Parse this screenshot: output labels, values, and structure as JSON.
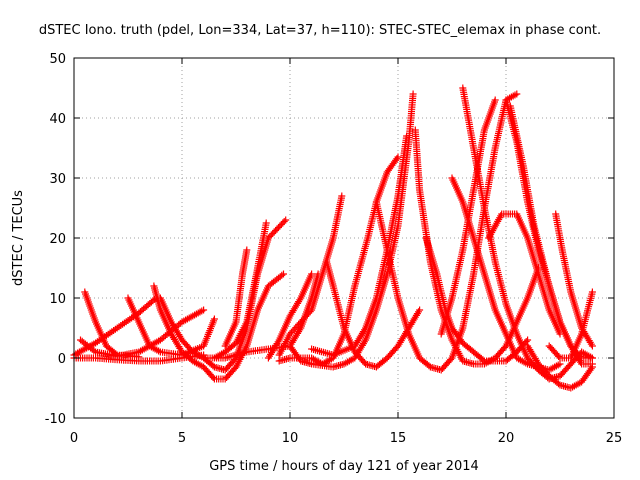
{
  "chart_data": {
    "type": "scatter",
    "title": "dSTEC Iono. truth (pdel, Lon=334, Lat=37, h=110): STEC-STEC_elemax in phase cont.",
    "xlabel": "GPS time / hours of day 121 of year 2014",
    "ylabel": "dSTEC  / TECUs",
    "xlim": [
      0,
      25
    ],
    "ylim": [
      -10,
      50
    ],
    "xticks": [
      "0",
      "5",
      "10",
      "15",
      "20",
      "25"
    ],
    "yticks": [
      "-10",
      "0",
      "10",
      "20",
      "30",
      "40",
      "50"
    ],
    "grid": true,
    "legend": "none",
    "marker": "plus",
    "color": "#ff0000",
    "series": [
      {
        "points": [
          [
            0,
            0.5
          ],
          [
            1,
            2.5
          ],
          [
            2,
            5
          ],
          [
            3,
            7.5
          ],
          [
            3.8,
            10
          ]
        ]
      },
      {
        "points": [
          [
            0.3,
            3
          ],
          [
            1,
            1
          ],
          [
            2,
            0.3
          ],
          [
            3,
            1
          ],
          [
            4,
            3
          ],
          [
            5,
            6
          ],
          [
            6,
            8
          ]
        ]
      },
      {
        "points": [
          [
            0.5,
            11
          ],
          [
            1,
            6
          ],
          [
            1.5,
            2
          ],
          [
            2,
            0.5
          ],
          [
            3,
            0.2
          ]
        ]
      },
      {
        "points": [
          [
            0,
            0
          ],
          [
            1,
            0
          ],
          [
            2,
            -0.3
          ],
          [
            3,
            -0.5
          ],
          [
            4,
            -0.5
          ],
          [
            5,
            0
          ],
          [
            6,
            0.5
          ]
        ]
      },
      {
        "points": [
          [
            2.5,
            10
          ],
          [
            3,
            6
          ],
          [
            3.5,
            2
          ],
          [
            4,
            1
          ],
          [
            5,
            0.5
          ],
          [
            6,
            2
          ],
          [
            6.5,
            6.5
          ]
        ]
      },
      {
        "points": [
          [
            3.7,
            12
          ],
          [
            4,
            8
          ],
          [
            4.5,
            4
          ],
          [
            5,
            1
          ],
          [
            5.5,
            -0.5
          ],
          [
            6,
            -1.5
          ],
          [
            6.5,
            -3.5
          ],
          [
            7,
            -3.5
          ],
          [
            7.5,
            -1.5
          ],
          [
            8,
            2
          ],
          [
            8.5,
            8
          ],
          [
            9,
            12
          ],
          [
            9.7,
            14
          ]
        ]
      },
      {
        "points": [
          [
            4,
            10
          ],
          [
            4.5,
            6
          ],
          [
            5,
            3
          ],
          [
            5.5,
            1
          ],
          [
            6,
            0
          ],
          [
            6.5,
            -1.5
          ],
          [
            7,
            -2
          ],
          [
            7.5,
            0
          ],
          [
            8,
            5
          ],
          [
            8.5,
            14
          ],
          [
            9,
            20
          ],
          [
            9.8,
            23
          ]
        ]
      },
      {
        "points": [
          [
            6.5,
            0
          ],
          [
            7,
            1
          ],
          [
            7.5,
            2.5
          ],
          [
            8,
            6
          ],
          [
            8.5,
            15
          ],
          [
            8.9,
            22.5
          ]
        ]
      },
      {
        "points": [
          [
            7,
            2
          ],
          [
            7.5,
            6
          ],
          [
            7.8,
            14
          ],
          [
            8,
            18
          ]
        ]
      },
      {
        "points": [
          [
            6,
            0
          ],
          [
            7,
            0
          ],
          [
            8,
            1
          ],
          [
            9,
            1.5
          ],
          [
            10,
            2
          ],
          [
            10.5,
            5
          ],
          [
            11,
            10
          ],
          [
            11.3,
            14
          ]
        ]
      },
      {
        "points": [
          [
            9,
            0
          ],
          [
            9.5,
            3
          ],
          [
            10,
            7
          ],
          [
            10.5,
            10
          ],
          [
            11,
            14
          ]
        ]
      },
      {
        "points": [
          [
            9.5,
            0.5
          ],
          [
            10,
            4
          ],
          [
            11,
            8
          ],
          [
            11.5,
            14
          ],
          [
            12,
            20
          ],
          [
            12.4,
            27
          ]
        ]
      },
      {
        "points": [
          [
            9.5,
            -0.5
          ],
          [
            10,
            0
          ],
          [
            11,
            0
          ],
          [
            11.5,
            -1
          ],
          [
            12,
            0
          ],
          [
            12.5,
            4
          ],
          [
            13,
            12
          ],
          [
            13.6,
            20
          ],
          [
            14,
            26
          ],
          [
            14.5,
            31
          ],
          [
            15,
            33.5
          ]
        ]
      },
      {
        "points": [
          [
            10,
            2
          ],
          [
            10.5,
            -0.5
          ],
          [
            11,
            -1
          ],
          [
            12,
            -1.5
          ],
          [
            12.5,
            -1
          ],
          [
            13,
            0
          ],
          [
            13.5,
            3
          ],
          [
            14,
            8
          ],
          [
            14.5,
            14
          ],
          [
            15,
            22
          ],
          [
            15.5,
            36
          ],
          [
            15.7,
            44
          ]
        ]
      },
      {
        "points": [
          [
            11,
            1.5
          ],
          [
            12,
            0.5
          ],
          [
            13,
            2
          ],
          [
            13.5,
            5
          ],
          [
            14,
            10
          ],
          [
            14.5,
            18
          ],
          [
            15,
            27
          ],
          [
            15.4,
            37
          ]
        ]
      },
      {
        "points": [
          [
            11.7,
            16
          ],
          [
            12,
            12
          ],
          [
            12.5,
            5
          ],
          [
            13,
            1
          ],
          [
            13.5,
            -1
          ],
          [
            14,
            -1.5
          ],
          [
            14.5,
            0
          ],
          [
            15,
            2
          ],
          [
            15.5,
            5
          ],
          [
            16,
            8
          ]
        ]
      },
      {
        "points": [
          [
            14,
            26
          ],
          [
            14.5,
            18
          ],
          [
            15,
            10
          ],
          [
            15.5,
            4
          ],
          [
            16,
            0
          ],
          [
            16.5,
            -1.5
          ],
          [
            17,
            -2
          ],
          [
            17.5,
            0
          ],
          [
            18,
            5
          ],
          [
            18.5,
            14
          ],
          [
            19,
            25
          ],
          [
            19.5,
            35
          ],
          [
            20,
            43
          ],
          [
            20.5,
            44
          ]
        ]
      },
      {
        "points": [
          [
            15.8,
            38
          ],
          [
            16,
            28
          ],
          [
            16.5,
            16
          ],
          [
            17,
            8
          ],
          [
            17.5,
            3
          ],
          [
            18,
            -0.5
          ],
          [
            18.5,
            -1
          ],
          [
            19,
            -1
          ],
          [
            19.5,
            0
          ],
          [
            20,
            2
          ],
          [
            20.5,
            6
          ],
          [
            21,
            10
          ],
          [
            21.5,
            15
          ]
        ]
      },
      {
        "points": [
          [
            16.3,
            20
          ],
          [
            16.8,
            14
          ],
          [
            17.2,
            8
          ],
          [
            17.5,
            5
          ],
          [
            18,
            2.5
          ],
          [
            18.5,
            1
          ],
          [
            19,
            -0.5
          ],
          [
            20,
            -0.5
          ],
          [
            20.5,
            1
          ],
          [
            21,
            3
          ]
        ]
      },
      {
        "points": [
          [
            17,
            4
          ],
          [
            17.5,
            10
          ],
          [
            18,
            18
          ],
          [
            18.5,
            28
          ],
          [
            19,
            38
          ],
          [
            19.5,
            43
          ]
        ]
      },
      {
        "points": [
          [
            18,
            45
          ],
          [
            18.5,
            35
          ],
          [
            19,
            25
          ],
          [
            19.5,
            16
          ],
          [
            20,
            9
          ],
          [
            20.5,
            4
          ],
          [
            21,
            0
          ],
          [
            21.5,
            -2
          ],
          [
            22,
            -3.5
          ],
          [
            22.5,
            -3
          ],
          [
            23,
            -1
          ],
          [
            23.5,
            1
          ],
          [
            24,
            0
          ]
        ]
      },
      {
        "points": [
          [
            17.5,
            30
          ],
          [
            18,
            26
          ],
          [
            18.5,
            20
          ],
          [
            19,
            14
          ],
          [
            19.5,
            8
          ],
          [
            20,
            4
          ],
          [
            20.5,
            0
          ],
          [
            21,
            -1
          ],
          [
            22,
            -2
          ],
          [
            22.5,
            -1
          ]
        ]
      },
      {
        "points": [
          [
            20,
            43
          ],
          [
            20.5,
            36
          ],
          [
            21,
            26
          ],
          [
            21.5,
            18
          ],
          [
            22,
            12
          ],
          [
            22.5,
            6
          ],
          [
            23,
            2
          ],
          [
            23.5,
            0
          ],
          [
            24,
            0
          ]
        ]
      },
      {
        "points": [
          [
            20.2,
            42
          ],
          [
            20.8,
            32
          ],
          [
            21.3,
            22
          ],
          [
            22,
            12
          ],
          [
            22.5,
            6
          ],
          [
            23,
            2
          ],
          [
            23.5,
            -1
          ],
          [
            24,
            -1
          ]
        ]
      },
      {
        "points": [
          [
            21,
            2
          ],
          [
            21.5,
            -1
          ],
          [
            22,
            -3
          ],
          [
            22.5,
            -4.5
          ],
          [
            23,
            -5
          ],
          [
            23.5,
            -4
          ],
          [
            24,
            -1.5
          ]
        ]
      },
      {
        "points": [
          [
            22.3,
            24
          ],
          [
            22.6,
            18
          ],
          [
            23,
            11
          ],
          [
            23.5,
            5
          ],
          [
            24,
            2
          ]
        ]
      },
      {
        "points": [
          [
            22,
            2
          ],
          [
            22.5,
            0
          ],
          [
            23,
            0
          ],
          [
            23.5,
            4
          ],
          [
            24,
            11
          ]
        ]
      },
      {
        "points": [
          [
            19.2,
            20
          ],
          [
            19.8,
            24
          ],
          [
            20.5,
            24
          ],
          [
            21,
            20
          ],
          [
            21.5,
            14
          ],
          [
            22,
            8
          ],
          [
            22.5,
            4
          ]
        ]
      }
    ]
  }
}
